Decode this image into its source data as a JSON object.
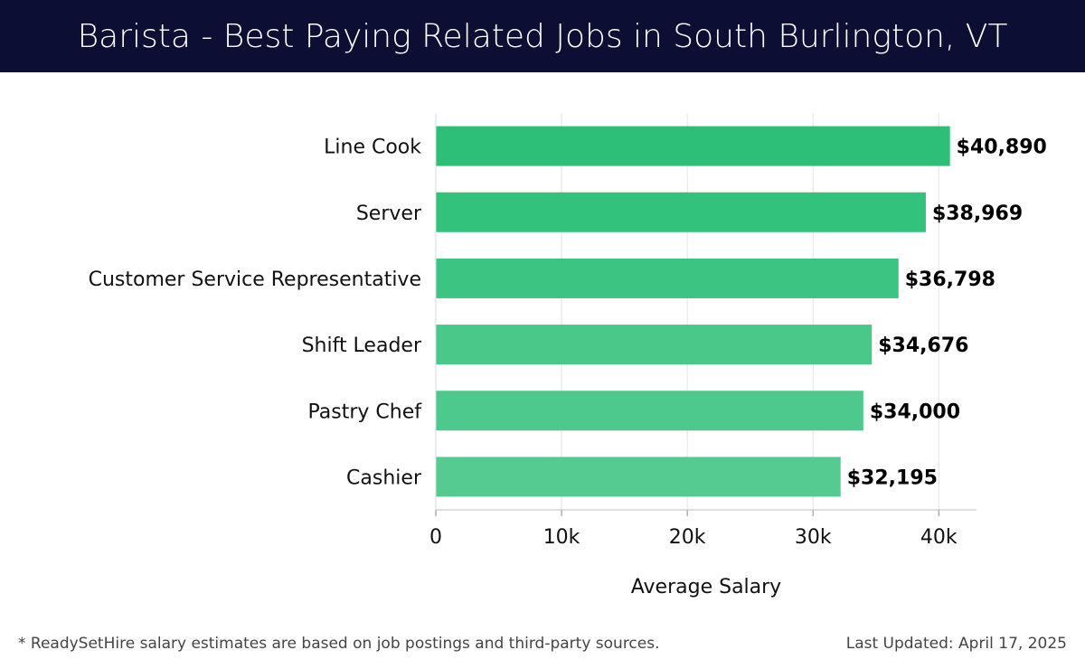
{
  "header": {
    "title": "Barista - Best Paying Related Jobs in South Burlington, VT"
  },
  "chart_data": {
    "type": "bar",
    "orientation": "horizontal",
    "categories": [
      "Line Cook",
      "Server",
      "Customer Service Representative",
      "Shift Leader",
      "Pastry Chef",
      "Cashier"
    ],
    "values": [
      40890,
      38969,
      36798,
      34676,
      34000,
      32195
    ],
    "value_labels": [
      "$40,890",
      "$38,969",
      "$36,798",
      "$34,676",
      "$34,000",
      "$32,195"
    ],
    "xlabel": "Average Salary",
    "ylabel": "",
    "xlim": [
      0,
      43000
    ],
    "xticks": [
      0,
      10000,
      20000,
      30000,
      40000
    ],
    "xtick_labels": [
      "0",
      "10k",
      "20k",
      "30k",
      "40k"
    ],
    "grid": true,
    "bar_colors": [
      "#2dbe78",
      "#33c27c",
      "#3cc482",
      "#48c889",
      "#4ec98d",
      "#55cb92"
    ]
  },
  "footer": {
    "note": "* ReadySetHire salary estimates are based on job postings and third-party sources.",
    "updated": "Last Updated: April 17, 2025"
  }
}
